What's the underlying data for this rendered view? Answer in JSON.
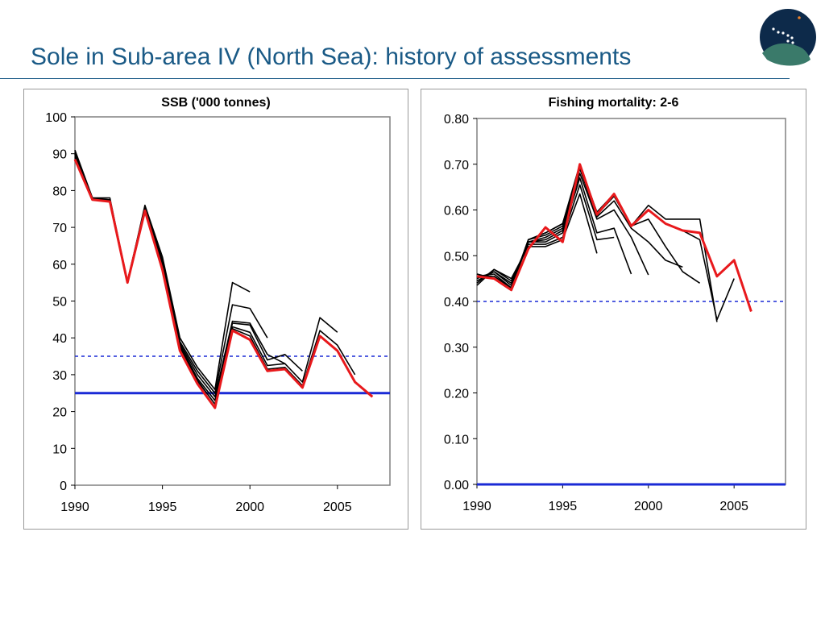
{
  "page": {
    "title": "Sole in Sub-area IV (North Sea): history of assessments"
  },
  "colors": {
    "title": "#1a5a86",
    "current_assessment": "#e8191c",
    "historic_assessment": "#000000",
    "reference_line": "#1a2ad6",
    "logo_navy": "#0d2a4a",
    "logo_teal": "#3a7a6a"
  },
  "chart_data": [
    {
      "id": "ssb",
      "type": "line",
      "title": "SSB ('000 tonnes)",
      "xlim": [
        1990,
        2008
      ],
      "ylim": [
        0,
        100
      ],
      "xticks": [
        1990,
        1995,
        2000,
        2005
      ],
      "xtick_labels": [
        "1990",
        "1995",
        "2000",
        "2005"
      ],
      "yticks": [
        0,
        10,
        20,
        30,
        40,
        50,
        60,
        70,
        80,
        90,
        100
      ],
      "ytick_labels": [
        "0",
        "10",
        "20",
        "30",
        "40",
        "50",
        "60",
        "70",
        "80",
        "90",
        "100"
      ],
      "reference_lines": [
        {
          "value": 35,
          "style": "dotted",
          "color": "#1a2ad6"
        },
        {
          "value": 25,
          "style": "solid",
          "color": "#1a2ad6"
        }
      ],
      "historic_series": [
        {
          "x": [
            1990,
            1991,
            1992,
            1993,
            1994,
            1995,
            1996,
            1997,
            1998,
            1999,
            2000
          ],
          "y": [
            91,
            78,
            78,
            55,
            76,
            62,
            40,
            32,
            26,
            55,
            52.5
          ]
        },
        {
          "x": [
            1990,
            1991,
            1992,
            1993,
            1994,
            1995,
            1996,
            1997,
            1998,
            1999,
            2000,
            2001
          ],
          "y": [
            90.5,
            78,
            77.5,
            55.5,
            75.5,
            61,
            39,
            31,
            25,
            49,
            48,
            40
          ]
        },
        {
          "x": [
            1990,
            1991,
            1992,
            1993,
            1994,
            1995,
            1996,
            1997,
            1998,
            1999,
            2000,
            2001,
            2002
          ],
          "y": [
            90,
            77.5,
            77.5,
            55,
            75,
            60.5,
            38.5,
            30,
            24,
            44.5,
            44,
            35.5,
            33
          ]
        },
        {
          "x": [
            1990,
            1991,
            1992,
            1993,
            1994,
            1995,
            1996,
            1997,
            1998,
            1999,
            2000,
            2001,
            2002,
            2003
          ],
          "y": [
            90,
            78,
            77,
            55,
            75,
            60,
            38,
            29,
            23,
            44,
            43.5,
            34,
            35.5,
            31
          ]
        },
        {
          "x": [
            1990,
            1991,
            1992,
            1993,
            1994,
            1995,
            1996,
            1997,
            1998,
            1999,
            2000,
            2001,
            2002,
            2003,
            2004,
            2005
          ],
          "y": [
            89.5,
            77.5,
            77,
            55,
            75,
            59.5,
            37.5,
            28.5,
            22,
            43,
            41.5,
            32.5,
            33,
            28,
            45.5,
            41.5
          ]
        },
        {
          "x": [
            1990,
            1991,
            1992,
            1993,
            1994,
            1995,
            1996,
            1997,
            1998,
            1999,
            2000,
            2001,
            2002,
            2003,
            2004,
            2005,
            2006
          ],
          "y": [
            89,
            77.5,
            77,
            55,
            74.5,
            59,
            37,
            28,
            21,
            42.5,
            40.5,
            31.5,
            32,
            27,
            42,
            38,
            30
          ]
        }
      ],
      "current_series": {
        "x": [
          1990,
          1991,
          1992,
          1993,
          1994,
          1995,
          1996,
          1997,
          1998,
          1999,
          2000,
          2001,
          2002,
          2003,
          2004,
          2005,
          2006,
          2007
        ],
        "y": [
          88.5,
          77.5,
          77,
          55,
          74.5,
          58.5,
          36.5,
          27.5,
          21,
          42,
          39.5,
          31,
          31.5,
          26.5,
          40.5,
          36.5,
          28,
          24
        ]
      }
    },
    {
      "id": "f",
      "type": "line",
      "title": "Fishing mortality: 2-6",
      "xlim": [
        1990,
        2008
      ],
      "ylim": [
        0,
        0.8
      ],
      "xticks": [
        1990,
        1995,
        2000,
        2005
      ],
      "xtick_labels": [
        "1990",
        "1995",
        "2000",
        "2005"
      ],
      "yticks": [
        0,
        0.1,
        0.2,
        0.3,
        0.4,
        0.5,
        0.6,
        0.7,
        0.8
      ],
      "ytick_labels": [
        "0.00",
        "0.10",
        "0.20",
        "0.30",
        "0.40",
        "0.50",
        "0.60",
        "0.70",
        "0.80"
      ],
      "reference_lines": [
        {
          "value": 0.4,
          "style": "dotted",
          "color": "#1a2ad6"
        },
        {
          "value": 0.0,
          "style": "solid",
          "color": "#1a2ad6"
        }
      ],
      "historic_series": [
        {
          "x": [
            1990,
            1991,
            1992,
            1993,
            1994,
            1995,
            1996,
            1997
          ],
          "y": [
            0.435,
            0.47,
            0.45,
            0.52,
            0.52,
            0.535,
            0.635,
            0.505
          ]
        },
        {
          "x": [
            1990,
            1991,
            1992,
            1993,
            1994,
            1995,
            1996,
            1997,
            1998
          ],
          "y": [
            0.44,
            0.47,
            0.445,
            0.525,
            0.525,
            0.54,
            0.655,
            0.535,
            0.54
          ]
        },
        {
          "x": [
            1990,
            1991,
            1992,
            1993,
            1994,
            1995,
            1996,
            1997,
            1998,
            1999
          ],
          "y": [
            0.445,
            0.465,
            0.44,
            0.53,
            0.53,
            0.55,
            0.67,
            0.55,
            0.56,
            0.46
          ]
        },
        {
          "x": [
            1990,
            1991,
            1992,
            1993,
            1994,
            1995,
            1996,
            1997,
            1998,
            1999,
            2000
          ],
          "y": [
            0.45,
            0.465,
            0.435,
            0.53,
            0.535,
            0.555,
            0.68,
            0.58,
            0.6,
            0.54,
            0.458
          ]
        },
        {
          "x": [
            1990,
            1991,
            1992,
            1993,
            1994,
            1995,
            1996,
            1997,
            1998,
            1999,
            2000,
            2001,
            2002
          ],
          "y": [
            0.455,
            0.46,
            0.43,
            0.53,
            0.54,
            0.56,
            0.69,
            0.585,
            0.62,
            0.56,
            0.53,
            0.49,
            0.475
          ]
        },
        {
          "x": [
            1990,
            1991,
            1992,
            1993,
            1994,
            1995,
            1996,
            1997,
            1998,
            1999,
            2000,
            2001,
            2002,
            2003
          ],
          "y": [
            0.455,
            0.455,
            0.43,
            0.535,
            0.545,
            0.565,
            0.695,
            0.59,
            0.63,
            0.565,
            0.58,
            0.52,
            0.465,
            0.44
          ]
        },
        {
          "x": [
            1990,
            1991,
            1992,
            1993,
            1994,
            1995,
            1996,
            1997,
            1998,
            1999,
            2000,
            2001,
            2002,
            2003,
            2004
          ],
          "y": [
            0.46,
            0.45,
            0.43,
            0.535,
            0.55,
            0.57,
            0.7,
            0.595,
            0.635,
            0.565,
            0.61,
            0.58,
            0.58,
            0.58,
            0.355
          ]
        },
        {
          "x": [
            1990,
            1991,
            1992,
            1993,
            1994,
            1995,
            1996,
            1997,
            1998,
            1999,
            2000,
            2001,
            2002,
            2003,
            2004,
            2005
          ],
          "y": [
            0.46,
            0.45,
            0.43,
            0.535,
            0.55,
            0.57,
            0.695,
            0.595,
            0.635,
            0.565,
            0.6,
            0.57,
            0.555,
            0.535,
            0.36,
            0.45
          ]
        }
      ],
      "current_series": {
        "x": [
          1990,
          1991,
          1992,
          1993,
          1994,
          1995,
          1996,
          1997,
          1998,
          1999,
          2000,
          2001,
          2002,
          2003,
          2004,
          2005,
          2006
        ],
        "y": [
          0.455,
          0.45,
          0.425,
          0.515,
          0.562,
          0.53,
          0.7,
          0.59,
          0.635,
          0.565,
          0.6,
          0.57,
          0.555,
          0.55,
          0.455,
          0.49,
          0.378
        ]
      }
    }
  ]
}
